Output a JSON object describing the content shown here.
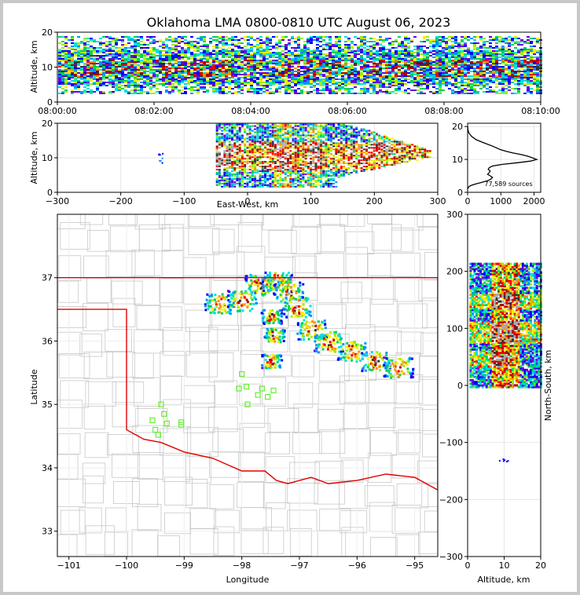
{
  "chart_data": [
    {
      "id": "altitude-time",
      "type": "heatmap",
      "title": "Oklahoma LMA 0800-0810 UTC August 06, 2023",
      "ylabel": "Altitude, km",
      "xlabel": "",
      "x_ticks": [
        "08:00:00",
        "08:02:00",
        "08:04:00",
        "08:06:00",
        "08:08:00",
        "08:10:00"
      ],
      "x_range_minutes": [
        0,
        10
      ],
      "y_ticks": [
        "0",
        "10",
        "20"
      ],
      "ylim": [
        0,
        20
      ]
    },
    {
      "id": "altitude-east-west",
      "type": "heatmap",
      "xlabel": "East-West, km",
      "ylabel": "Altitude, km",
      "x_ticks": [
        "−300",
        "−200",
        "−100",
        "0",
        "100",
        "200",
        "300"
      ],
      "xlim": [
        -300,
        300
      ],
      "y_ticks": [
        "0",
        "10",
        "20"
      ],
      "ylim": [
        0,
        20
      ]
    },
    {
      "id": "altitude-histogram",
      "type": "line",
      "x_ticks": [
        "0",
        "1000",
        "2000"
      ],
      "xlim": [
        0,
        2200
      ],
      "y_ticks": [
        "0",
        "10",
        "20"
      ],
      "ylim": [
        0,
        21
      ],
      "annotation": "77,589 sources",
      "profile": [
        [
          20,
          2
        ],
        [
          19,
          10
        ],
        [
          18,
          40
        ],
        [
          17,
          120
        ],
        [
          16,
          260
        ],
        [
          15,
          500
        ],
        [
          14,
          760
        ],
        [
          13,
          980
        ],
        [
          12.5,
          1150
        ],
        [
          12,
          1350
        ],
        [
          11.5,
          1600
        ],
        [
          11,
          1800
        ],
        [
          10.5,
          1950
        ],
        [
          10,
          2080
        ],
        [
          9.5,
          1900
        ],
        [
          9,
          1500
        ],
        [
          8.5,
          1050
        ],
        [
          8,
          750
        ],
        [
          7.5,
          650
        ],
        [
          7,
          620
        ],
        [
          6.5,
          680
        ],
        [
          6,
          650
        ],
        [
          5.5,
          600
        ],
        [
          5,
          680
        ],
        [
          4.5,
          750
        ],
        [
          4,
          700
        ],
        [
          3.5,
          600
        ],
        [
          3,
          420
        ],
        [
          2.5,
          230
        ],
        [
          2,
          80
        ],
        [
          1.5,
          20
        ],
        [
          1,
          2
        ]
      ]
    },
    {
      "id": "plan-view-map",
      "type": "heatmap",
      "xlabel": "Longitude",
      "ylabel": "Latitude",
      "x_ticks": [
        "−101",
        "−100",
        "−99",
        "−98",
        "−97",
        "−96",
        "−95"
      ],
      "xlim": [
        -101.2,
        -94.6
      ],
      "y_ticks": [
        "33",
        "34",
        "35",
        "36",
        "37"
      ],
      "ylim": [
        32.6,
        38.0
      ],
      "stations": [
        [
          -99.4,
          35.0
        ],
        [
          -99.35,
          34.85
        ],
        [
          -99.55,
          34.75
        ],
        [
          -99.3,
          34.7
        ],
        [
          -99.5,
          34.6
        ],
        [
          -99.45,
          34.52
        ],
        [
          -99.05,
          34.72
        ],
        [
          -99.05,
          34.68
        ],
        [
          -98.0,
          35.48
        ],
        [
          -98.05,
          35.25
        ],
        [
          -97.92,
          35.28
        ],
        [
          -97.72,
          35.15
        ],
        [
          -97.65,
          35.25
        ],
        [
          -97.55,
          35.12
        ],
        [
          -97.45,
          35.22
        ],
        [
          -97.9,
          35.0
        ]
      ]
    },
    {
      "id": "north-south-altitude",
      "type": "heatmap",
      "xlabel": "Altitude, km",
      "ylabel": "North-South, km",
      "x_ticks": [
        "0",
        "10",
        "20"
      ],
      "xlim": [
        0,
        20
      ],
      "y_ticks": [
        "−300",
        "−200",
        "−100",
        "0",
        "100",
        "200",
        "300"
      ],
      "ylim": [
        -300,
        300
      ]
    }
  ],
  "colors": {
    "border_red": "#e00000",
    "county_lines": "#c8c8c8",
    "station_green": "#66ee33",
    "palette": [
      "#6a00d8",
      "#0000ff",
      "#0090ff",
      "#00e0e0",
      "#00d060",
      "#a0ee00",
      "#ffee00",
      "#ff9000",
      "#ff0000",
      "#b00000",
      "#333333",
      "#aaaaaa"
    ]
  }
}
